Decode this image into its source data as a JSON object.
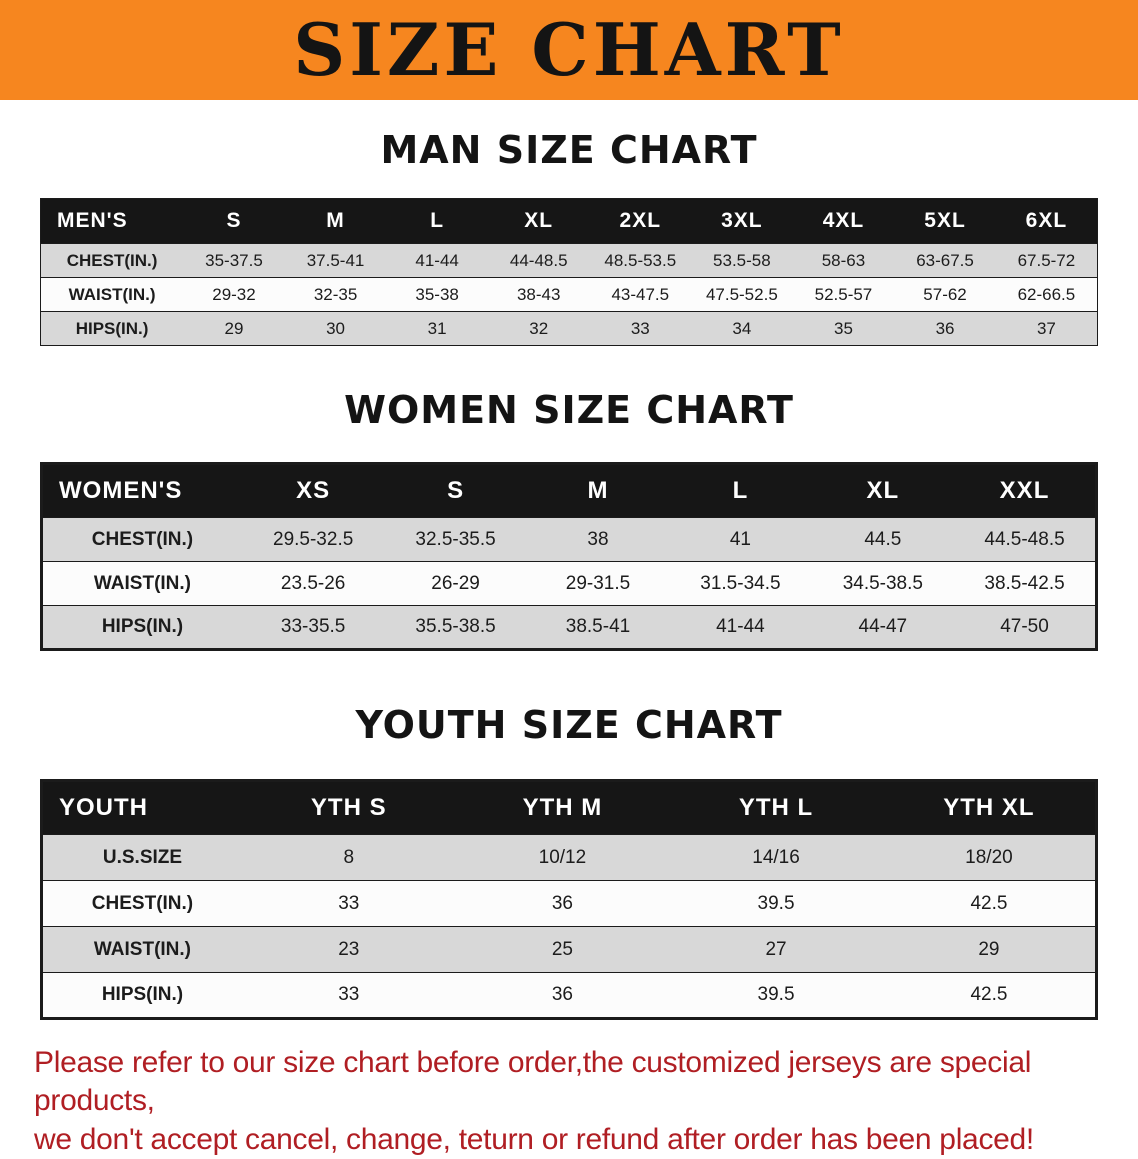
{
  "banner": {
    "title": "SIZE CHART"
  },
  "colors": {
    "banner_bg": "#F6861F",
    "table_header_bg": "#161616",
    "row_alt_gray": "#D8D8D8",
    "disclaimer_red": "#B01E23"
  },
  "sections": [
    {
      "id": "men",
      "heading": "MAN SIZE CHART",
      "table": {
        "header": [
          "MEN'S",
          "S",
          "M",
          "L",
          "XL",
          "2XL",
          "3XL",
          "4XL",
          "5XL",
          "6XL"
        ],
        "rows": [
          {
            "label": "CHEST(IN.)",
            "values": [
              "35-37.5",
              "37.5-41",
              "41-44",
              "44-48.5",
              "48.5-53.5",
              "53.5-58",
              "58-63",
              "63-67.5",
              "67.5-72"
            ]
          },
          {
            "label": "WAIST(IN.)",
            "values": [
              "29-32",
              "32-35",
              "35-38",
              "38-43",
              "43-47.5",
              "47.5-52.5",
              "52.5-57",
              "57-62",
              "62-66.5"
            ]
          },
          {
            "label": "HIPS(IN.)",
            "values": [
              "29",
              "30",
              "31",
              "32",
              "33",
              "34",
              "35",
              "36",
              "37"
            ]
          }
        ]
      }
    },
    {
      "id": "women",
      "heading": "WOMEN SIZE CHART",
      "table": {
        "header": [
          "WOMEN'S",
          "XS",
          "S",
          "M",
          "L",
          "XL",
          "XXL"
        ],
        "rows": [
          {
            "label": "CHEST(IN.)",
            "values": [
              "29.5-32.5",
              "32.5-35.5",
              "38",
              "41",
              "44.5",
              "44.5-48.5"
            ]
          },
          {
            "label": "WAIST(IN.)",
            "values": [
              "23.5-26",
              "26-29",
              "29-31.5",
              "31.5-34.5",
              "34.5-38.5",
              "38.5-42.5"
            ]
          },
          {
            "label": "HIPS(IN.)",
            "values": [
              "33-35.5",
              "35.5-38.5",
              "38.5-41",
              "41-44",
              "44-47",
              "47-50"
            ]
          }
        ]
      }
    },
    {
      "id": "youth",
      "heading": "YOUTH SIZE CHART",
      "table": {
        "header": [
          "YOUTH",
          "YTH S",
          "YTH M",
          "YTH L",
          "YTH XL"
        ],
        "rows": [
          {
            "label": "U.S.SIZE",
            "values": [
              "8",
              "10/12",
              "14/16",
              "18/20"
            ]
          },
          {
            "label": "CHEST(IN.)",
            "values": [
              "33",
              "36",
              "39.5",
              "42.5"
            ]
          },
          {
            "label": "WAIST(IN.)",
            "values": [
              "23",
              "25",
              "27",
              "29"
            ]
          },
          {
            "label": "HIPS(IN.)",
            "values": [
              "33",
              "36",
              "39.5",
              "42.5"
            ]
          }
        ]
      }
    }
  ],
  "disclaimer": {
    "line1": "Please refer to our size chart before order,the customized jerseys are special products,",
    "line2": "we don't accept cancel, change, teturn or refund after order has been placed!"
  }
}
